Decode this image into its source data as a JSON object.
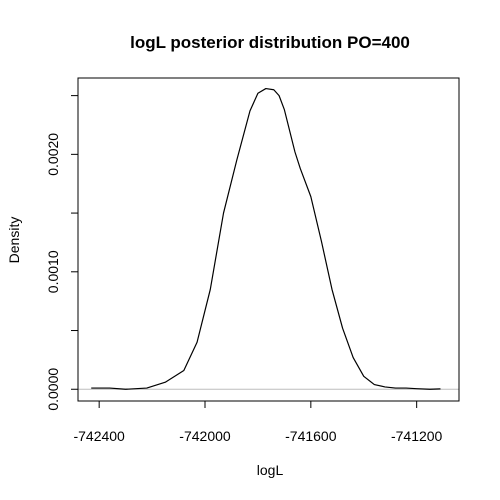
{
  "chart_data": {
    "type": "line",
    "title": "logL posterior distribution PO=400",
    "xlabel": "logL",
    "ylabel": "Density",
    "xlim": [
      -742480,
      -741040
    ],
    "ylim": [
      -0.0001,
      0.00265
    ],
    "x_ticks": [
      -742400,
      -742000,
      -741600,
      -741200
    ],
    "x_tick_labels": [
      "-742400",
      "-742000",
      "-741600",
      "-741200"
    ],
    "y_ticks": [
      0.0,
      0.0005,
      0.001,
      0.0015,
      0.002,
      0.0025
    ],
    "y_tick_labels": [
      "0.0000",
      "",
      "0.0010",
      "",
      "0.0020",
      ""
    ],
    "grid": false,
    "baseline": 0,
    "series": [
      {
        "x": [
          -742430,
          -742360,
          -742300,
          -742220,
          -742150,
          -742080,
          -742030,
          -741980,
          -741930,
          -741880,
          -741830,
          -741800,
          -741770,
          -741740,
          -741720,
          -741700,
          -741680,
          -741660,
          -741640,
          -741600,
          -741560,
          -741520,
          -741480,
          -741440,
          -741400,
          -741360,
          -741320,
          -741280,
          -741240,
          -741200,
          -741150,
          -741110
        ],
        "y": [
          1e-05,
          1e-05,
          0.0,
          1e-05,
          6e-05,
          0.00016,
          0.0004,
          0.00085,
          0.0015,
          0.00195,
          0.00237,
          0.00252,
          0.00256,
          0.00255,
          0.0025,
          0.00238,
          0.0022,
          0.00202,
          0.00188,
          0.00164,
          0.00126,
          0.00085,
          0.00052,
          0.00027,
          0.00011,
          4e-05,
          2e-05,
          1e-05,
          1e-05,
          5e-06,
          0.0,
          3e-06
        ]
      }
    ]
  }
}
